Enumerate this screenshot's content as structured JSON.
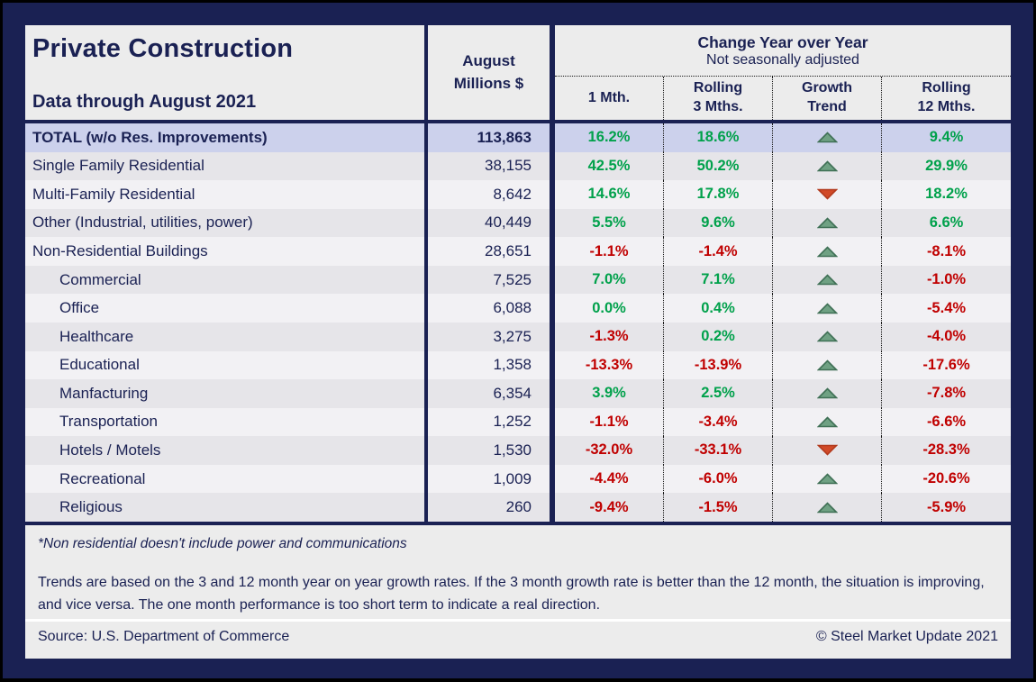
{
  "colors": {
    "navy": "#1a2153",
    "positive": "#00a14b",
    "negative": "#c00000",
    "row_dark": "#e6e5e9",
    "row_light": "#f2f1f4",
    "row_total": "#ccd1ec",
    "trend_up": "#6fa183",
    "trend_up_border": "#3f7055",
    "trend_down": "#d14a28",
    "trend_down_border": "#b23a1d"
  },
  "chart_data": {
    "type": "table",
    "title": "Private Construction",
    "subtitle": "Data through August 2021",
    "value_column": "August\nMillions $",
    "group_header": "Change Year over Year",
    "group_subheader": "Not seasonally adjusted",
    "columns": [
      "1 Mth.",
      "Rolling\n3 Mths.",
      "Growth\nTrend",
      "Rolling\n12 Mths."
    ],
    "rows": [
      {
        "label": "TOTAL (w/o Res. Improvements)",
        "value": "113,863",
        "m1": "16.2%",
        "r3": "18.6%",
        "trend": "up",
        "r12": "9.4%",
        "total": true
      },
      {
        "label": "Single Family Residential",
        "value": "38,155",
        "m1": "42.5%",
        "r3": "50.2%",
        "trend": "up",
        "r12": "29.9%"
      },
      {
        "label": "Multi-Family Residential",
        "value": "8,642",
        "m1": "14.6%",
        "r3": "17.8%",
        "trend": "down",
        "r12": "18.2%"
      },
      {
        "label": "Other (Industrial, utilities, power)",
        "value": "40,449",
        "m1": "5.5%",
        "r3": "9.6%",
        "trend": "up",
        "r12": "6.6%"
      },
      {
        "label": "Non-Residential Buildings",
        "value": "28,651",
        "m1": "-1.1%",
        "r3": "-1.4%",
        "trend": "up",
        "r12": "-8.1%"
      },
      {
        "label": "Commercial",
        "value": "7,525",
        "m1": "7.0%",
        "r3": "7.1%",
        "trend": "up",
        "r12": "-1.0%",
        "indent": true
      },
      {
        "label": "Office",
        "value": "6,088",
        "m1": "0.0%",
        "r3": "0.4%",
        "trend": "up",
        "r12": "-5.4%",
        "indent": true
      },
      {
        "label": "Healthcare",
        "value": "3,275",
        "m1": "-1.3%",
        "r3": "0.2%",
        "trend": "up",
        "r12": "-4.0%",
        "indent": true
      },
      {
        "label": "Educational",
        "value": "1,358",
        "m1": "-13.3%",
        "r3": "-13.9%",
        "trend": "up",
        "r12": "-17.6%",
        "indent": true
      },
      {
        "label": "Manfacturing",
        "value": "6,354",
        "m1": "3.9%",
        "r3": "2.5%",
        "trend": "up",
        "r12": "-7.8%",
        "indent": true
      },
      {
        "label": "Transportation",
        "value": "1,252",
        "m1": "-1.1%",
        "r3": "-3.4%",
        "trend": "up",
        "r12": "-6.6%",
        "indent": true
      },
      {
        "label": "Hotels / Motels",
        "value": "1,530",
        "m1": "-32.0%",
        "r3": "-33.1%",
        "trend": "down",
        "r12": "-28.3%",
        "indent": true
      },
      {
        "label": "Recreational",
        "value": "1,009",
        "m1": "-4.4%",
        "r3": "-6.0%",
        "trend": "up",
        "r12": "-20.6%",
        "indent": true
      },
      {
        "label": "Religious",
        "value": "260",
        "m1": "-9.4%",
        "r3": "-1.5%",
        "trend": "up",
        "r12": "-5.9%",
        "indent": true
      }
    ]
  },
  "footer": {
    "note": "*Non residential doesn't include power and communications",
    "trends": "Trends are based on the 3 and 12 month year on year growth rates. If the 3 month growth rate is better than the 12 month, the situation is improving, and vice versa. The one month performance is too short term to indicate a real direction.",
    "source": "Source: U.S. Department of Commerce",
    "copyright": "© Steel Market Update 2021"
  }
}
